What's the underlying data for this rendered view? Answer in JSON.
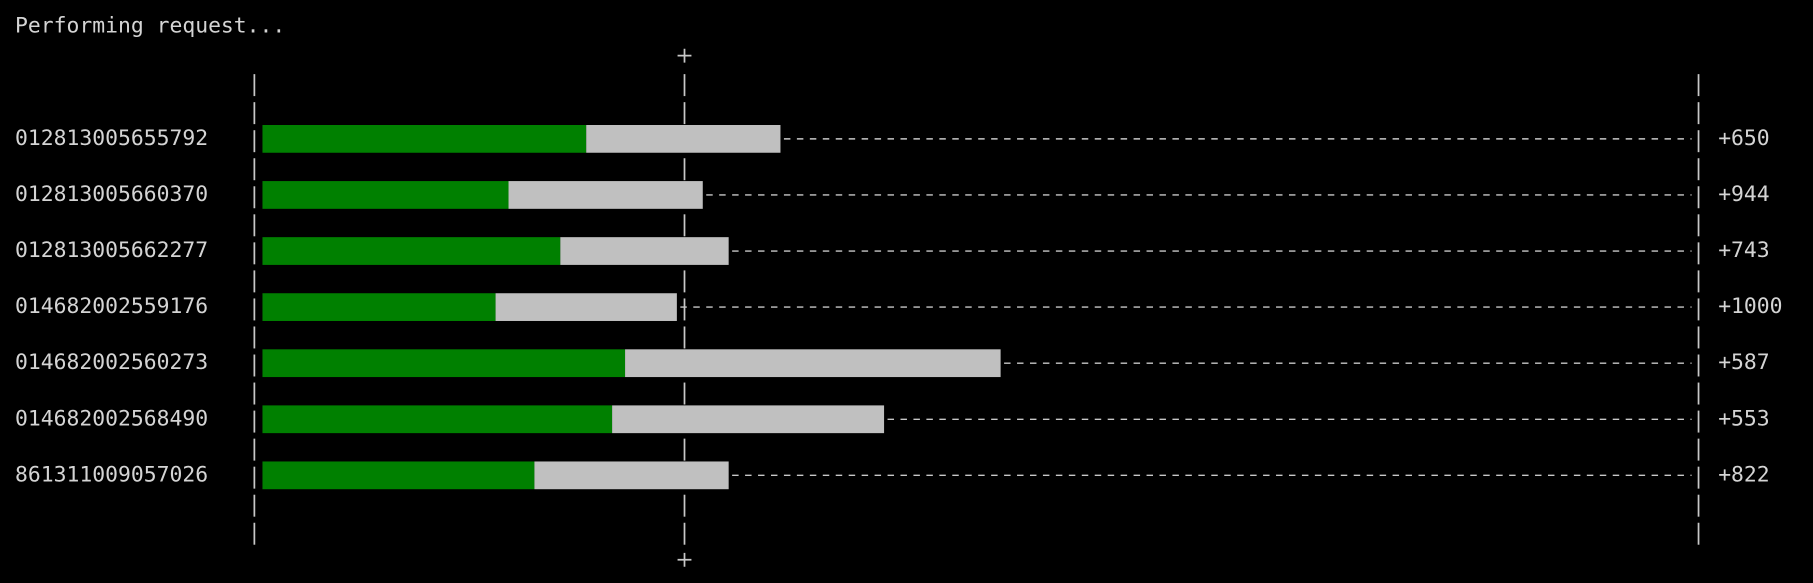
{
  "status": "Performing request...",
  "rows": [
    {
      "id": "012813005655792",
      "green": 25,
      "gray": 15,
      "label": "+650"
    },
    {
      "id": "012813005660370",
      "green": 19,
      "gray": 15,
      "label": "+944"
    },
    {
      "id": "012813005662277",
      "green": 23,
      "gray": 13,
      "label": "+743"
    },
    {
      "id": "014682002559176",
      "green": 18,
      "gray": 14,
      "label": "+1000"
    },
    {
      "id": "014682002560273",
      "green": 28,
      "gray": 29,
      "label": "+587"
    },
    {
      "id": "014682002568490",
      "green": 27,
      "gray": 21,
      "label": "+553"
    },
    {
      "id": "861311009057026",
      "green": 21,
      "gray": 15,
      "label": "+822"
    }
  ]
}
